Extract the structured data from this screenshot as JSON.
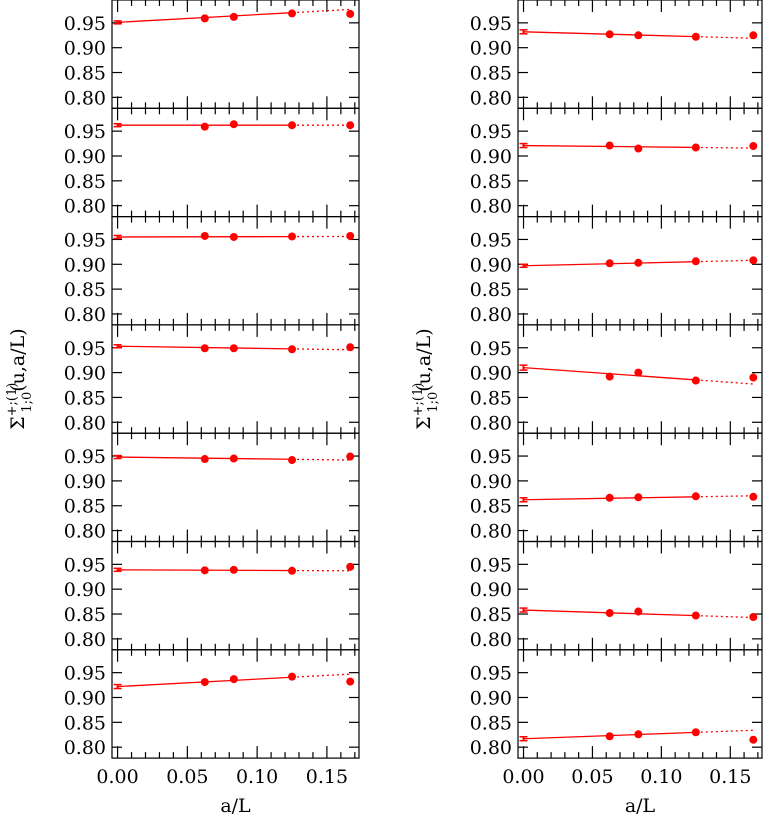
{
  "axes": {
    "xlabel": "a/L",
    "xlim": [
      -0.004,
      0.173
    ],
    "xticks": [
      {
        "value": 0,
        "label": "0.00"
      },
      0.05,
      {
        "value": 0.1,
        "label": "0.10"
      },
      0.15
    ],
    "xminorticks": [
      0.01,
      0.02,
      0.03,
      0.04,
      0.06,
      0.07,
      0.08,
      0.09,
      0.11,
      0.12,
      0.13,
      0.14,
      0.16,
      0.17
    ],
    "ylim": [
      0.778,
      0.996
    ],
    "yticks": [
      {
        "value": 0.8,
        "label": "0.80"
      },
      0.85,
      {
        "value": 0.9,
        "label": "0.90"
      },
      0.95
    ],
    "ylabel": {
      "symbol": "Σ",
      "superscript": "+;(1)",
      "subscript": "1;0",
      "args": "(u,a/L)"
    },
    "color": "#ff0000"
  },
  "chart_data": [
    {
      "type": "scatter",
      "x": [
        0,
        0.0625,
        0.0833,
        0.125,
        0.1667
      ],
      "values": [
        0.951,
        0.959,
        0.962,
        0.969,
        0.968
      ],
      "error": 0.003,
      "fit": [
        0.951,
        0.977
      ]
    },
    {
      "type": "scatter",
      "x": [
        0,
        0.0625,
        0.0833,
        0.125,
        0.1667
      ],
      "values": [
        0.962,
        0.959,
        0.964,
        0.962,
        0.962
      ],
      "error": 0.003,
      "fit": [
        0.962,
        0.962
      ]
    },
    {
      "type": "scatter",
      "x": [
        0,
        0.0625,
        0.0833,
        0.125,
        0.1667
      ],
      "values": [
        0.955,
        0.957,
        0.955,
        0.956,
        0.957
      ],
      "error": 0.003,
      "fit": [
        0.955,
        0.956
      ]
    },
    {
      "type": "scatter",
      "x": [
        0,
        0.0625,
        0.0833,
        0.125,
        0.1667
      ],
      "values": [
        0.953,
        0.949,
        0.949,
        0.947,
        0.951
      ],
      "error": 0.003,
      "fit": [
        0.953,
        0.946
      ]
    },
    {
      "type": "scatter",
      "x": [
        0,
        0.0625,
        0.0833,
        0.125,
        0.1667
      ],
      "values": [
        0.948,
        0.944,
        0.945,
        0.942,
        0.949
      ],
      "error": 0.003,
      "fit": [
        0.948,
        0.942
      ]
    },
    {
      "type": "scatter",
      "x": [
        0,
        0.0625,
        0.0833,
        0.125,
        0.1667
      ],
      "values": [
        0.939,
        0.938,
        0.939,
        0.937,
        0.945
      ],
      "error": 0.003,
      "fit": [
        0.939,
        0.937
      ]
    },
    {
      "type": "scatter",
      "x": [
        0,
        0.0625,
        0.0833,
        0.125,
        0.1667
      ],
      "values": [
        0.922,
        0.931,
        0.937,
        0.942,
        0.932
      ],
      "error": 0.004,
      "fit": [
        0.922,
        0.947
      ]
    },
    {
      "type": "scatter",
      "x": [
        0,
        0.0625,
        0.0833,
        0.125,
        0.1667
      ],
      "values": [
        0.932,
        0.927,
        0.925,
        0.922,
        0.925
      ],
      "error": 0.004,
      "fit": [
        0.932,
        0.919
      ]
    },
    {
      "type": "scatter",
      "x": [
        0,
        0.0625,
        0.0833,
        0.125,
        0.1667
      ],
      "values": [
        0.921,
        0.921,
        0.915,
        0.917,
        0.92
      ],
      "error": 0.004,
      "fit": [
        0.921,
        0.916
      ]
    },
    {
      "type": "scatter",
      "x": [
        0,
        0.0625,
        0.0833,
        0.125,
        0.1667
      ],
      "values": [
        0.897,
        0.902,
        0.903,
        0.906,
        0.908
      ],
      "error": 0.003,
      "fit": [
        0.897,
        0.908
      ]
    },
    {
      "type": "scatter",
      "x": [
        0,
        0.0625,
        0.0833,
        0.125,
        0.1667
      ],
      "values": [
        0.91,
        0.892,
        0.9,
        0.884,
        0.89
      ],
      "error": 0.005,
      "fit": [
        0.91,
        0.877
      ]
    },
    {
      "type": "scatter",
      "x": [
        0,
        0.0625,
        0.0833,
        0.125,
        0.1667
      ],
      "values": [
        0.862,
        0.866,
        0.867,
        0.869,
        0.868
      ],
      "error": 0.004,
      "fit": [
        0.862,
        0.87
      ]
    },
    {
      "type": "scatter",
      "x": [
        0,
        0.0625,
        0.0833,
        0.125,
        0.1667
      ],
      "values": [
        0.858,
        0.852,
        0.855,
        0.847,
        0.844
      ],
      "error": 0.004,
      "fit": [
        0.858,
        0.843
      ]
    },
    {
      "type": "scatter",
      "x": [
        0,
        0.0625,
        0.0833,
        0.125,
        0.1667
      ],
      "values": [
        0.817,
        0.822,
        0.826,
        0.83,
        0.815
      ],
      "error": 0.004,
      "fit": [
        0.817,
        0.834
      ]
    }
  ]
}
